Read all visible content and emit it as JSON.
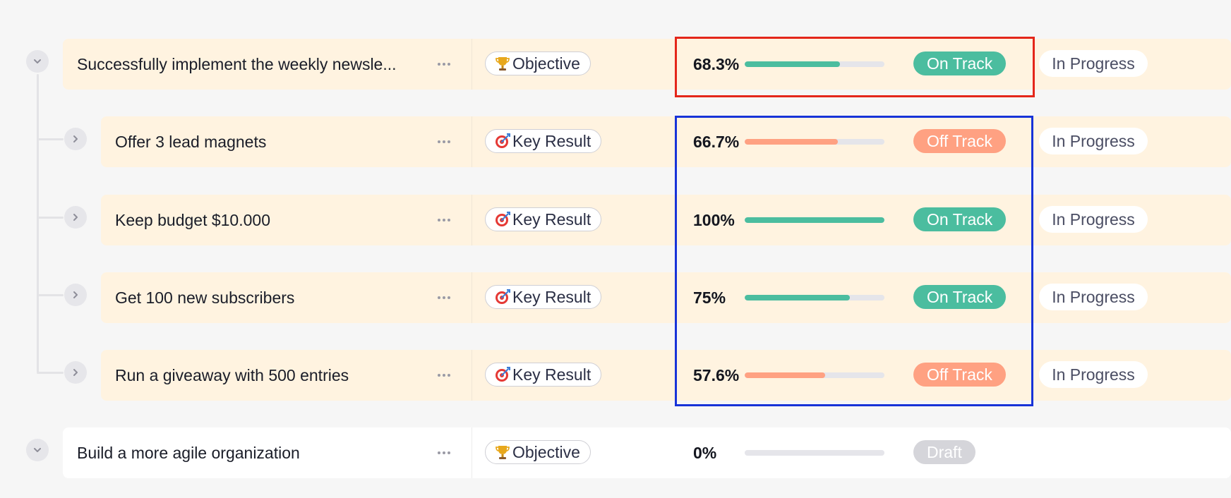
{
  "colors": {
    "row_bg": "#fff3e0",
    "on_track": "#4bbd9f",
    "off_track": "#ffa182",
    "draft": "#d5d5da",
    "highlight_red": "#e4261a",
    "highlight_blue": "#1733d8"
  },
  "rows": [
    {
      "title": "Successfully implement the weekly newsle...",
      "type": "Objective",
      "type_icon": "trophy-icon",
      "progress_text": "68.3%",
      "progress": 0.683,
      "status": "On Track",
      "status_kind": "on_track",
      "state": "In Progress",
      "expanded": true
    },
    {
      "title": "Offer 3 lead magnets",
      "type": "Key Result",
      "type_icon": "target-icon",
      "progress_text": "66.7%",
      "progress": 0.667,
      "status": "Off Track",
      "status_kind": "off_track",
      "state": "In Progress",
      "expanded": false
    },
    {
      "title": "Keep budget $10.000",
      "type": "Key Result",
      "type_icon": "target-icon",
      "progress_text": "100%",
      "progress": 1.0,
      "status": "On Track",
      "status_kind": "on_track",
      "state": "In Progress",
      "expanded": false
    },
    {
      "title": "Get 100 new subscribers",
      "type": "Key Result",
      "type_icon": "target-icon",
      "progress_text": "75%",
      "progress": 0.75,
      "status": "On Track",
      "status_kind": "on_track",
      "state": "In Progress",
      "expanded": false
    },
    {
      "title": "Run a giveaway with 500 entries",
      "type": "Key Result",
      "type_icon": "target-icon",
      "progress_text": "57.6%",
      "progress": 0.576,
      "status": "Off Track",
      "status_kind": "off_track",
      "state": "In Progress",
      "expanded": false
    },
    {
      "title": "Build a more agile organization",
      "type": "Objective",
      "type_icon": "trophy-icon",
      "progress_text": "0%",
      "progress": 0,
      "status": "Draft",
      "status_kind": "draft",
      "state": "",
      "expanded": true
    }
  ]
}
